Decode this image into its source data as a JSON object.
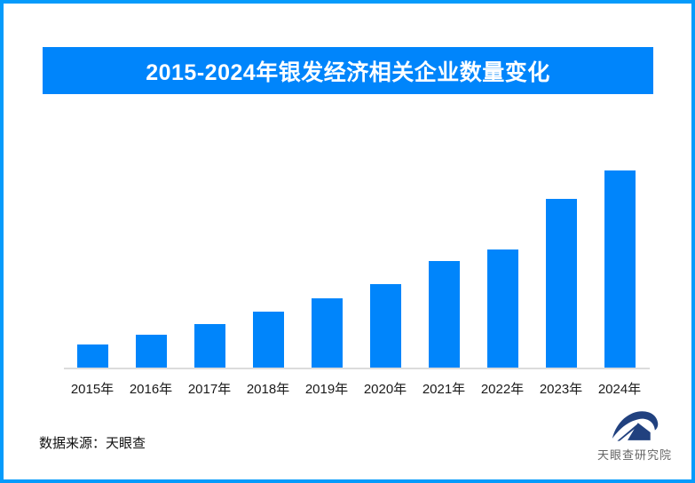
{
  "header": {
    "title": "2015-2024年银发经济相关企业数量变化",
    "banner_color": "#0085FB",
    "title_text_color": "#FFFFFF"
  },
  "chart_data": {
    "type": "bar",
    "title": "2015-2024年银发经济相关企业数量变化",
    "categories": [
      "2015年",
      "2016年",
      "2017年",
      "2018年",
      "2019年",
      "2020年",
      "2021年",
      "2022年",
      "2023年",
      "2024年"
    ],
    "values_relative_pct": [
      11.7,
      16.7,
      22.1,
      28.4,
      35.1,
      42.3,
      54.1,
      59.9,
      85.6,
      100
    ],
    "value_note": "no numeric y-axis or data labels shown; values estimated as percent of tallest (2024) bar",
    "xlabel": "",
    "ylabel": "",
    "y_axis_shown": false,
    "grid": false,
    "legend": "none",
    "bar_color": "#0085FB",
    "baseline_color": "#DCDCDC"
  },
  "footer": {
    "source": "数据来源：天眼查",
    "publisher": "天眼查研究院"
  },
  "colors": {
    "page_border": "#059BFB",
    "background": "#FFFFFF",
    "logo_navy": "#21417F",
    "axis_label_text": "#1A1A1A",
    "publisher_text": "#666666"
  }
}
